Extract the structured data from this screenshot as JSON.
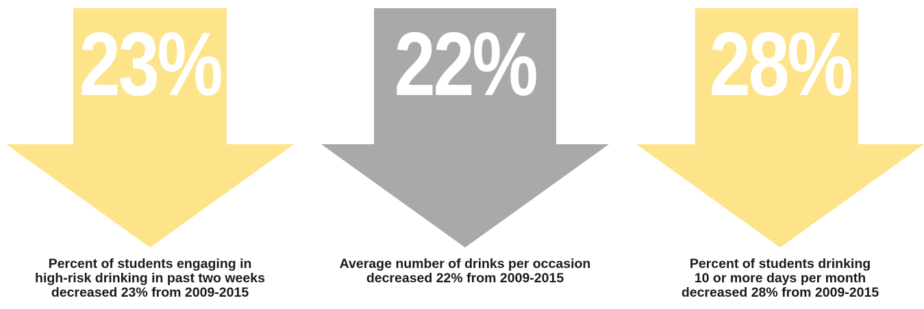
{
  "colors": {
    "yellow_arrow": "#fde38a",
    "gray_arrow": "#a8a9ab",
    "number_text": "#ffffff",
    "caption_text": "#1a1a1a"
  },
  "stats": [
    {
      "value": "23%",
      "arrow_color": "yellow",
      "arrow_icon": "down-arrow-icon",
      "caption_lines": [
        "Percent of students engaging in",
        "high-risk drinking in past two weeks",
        "decreased 23% from 2009-2015"
      ]
    },
    {
      "value": "22%",
      "arrow_color": "gray",
      "arrow_icon": "down-arrow-icon",
      "caption_lines": [
        "Average number of drinks per occasion",
        "decreased 22% from 2009-2015"
      ]
    },
    {
      "value": "28%",
      "arrow_color": "yellow",
      "arrow_icon": "down-arrow-icon",
      "caption_lines": [
        "Percent of students drinking",
        "10 or more days per month",
        "decreased 28% from 2009-2015"
      ]
    }
  ]
}
